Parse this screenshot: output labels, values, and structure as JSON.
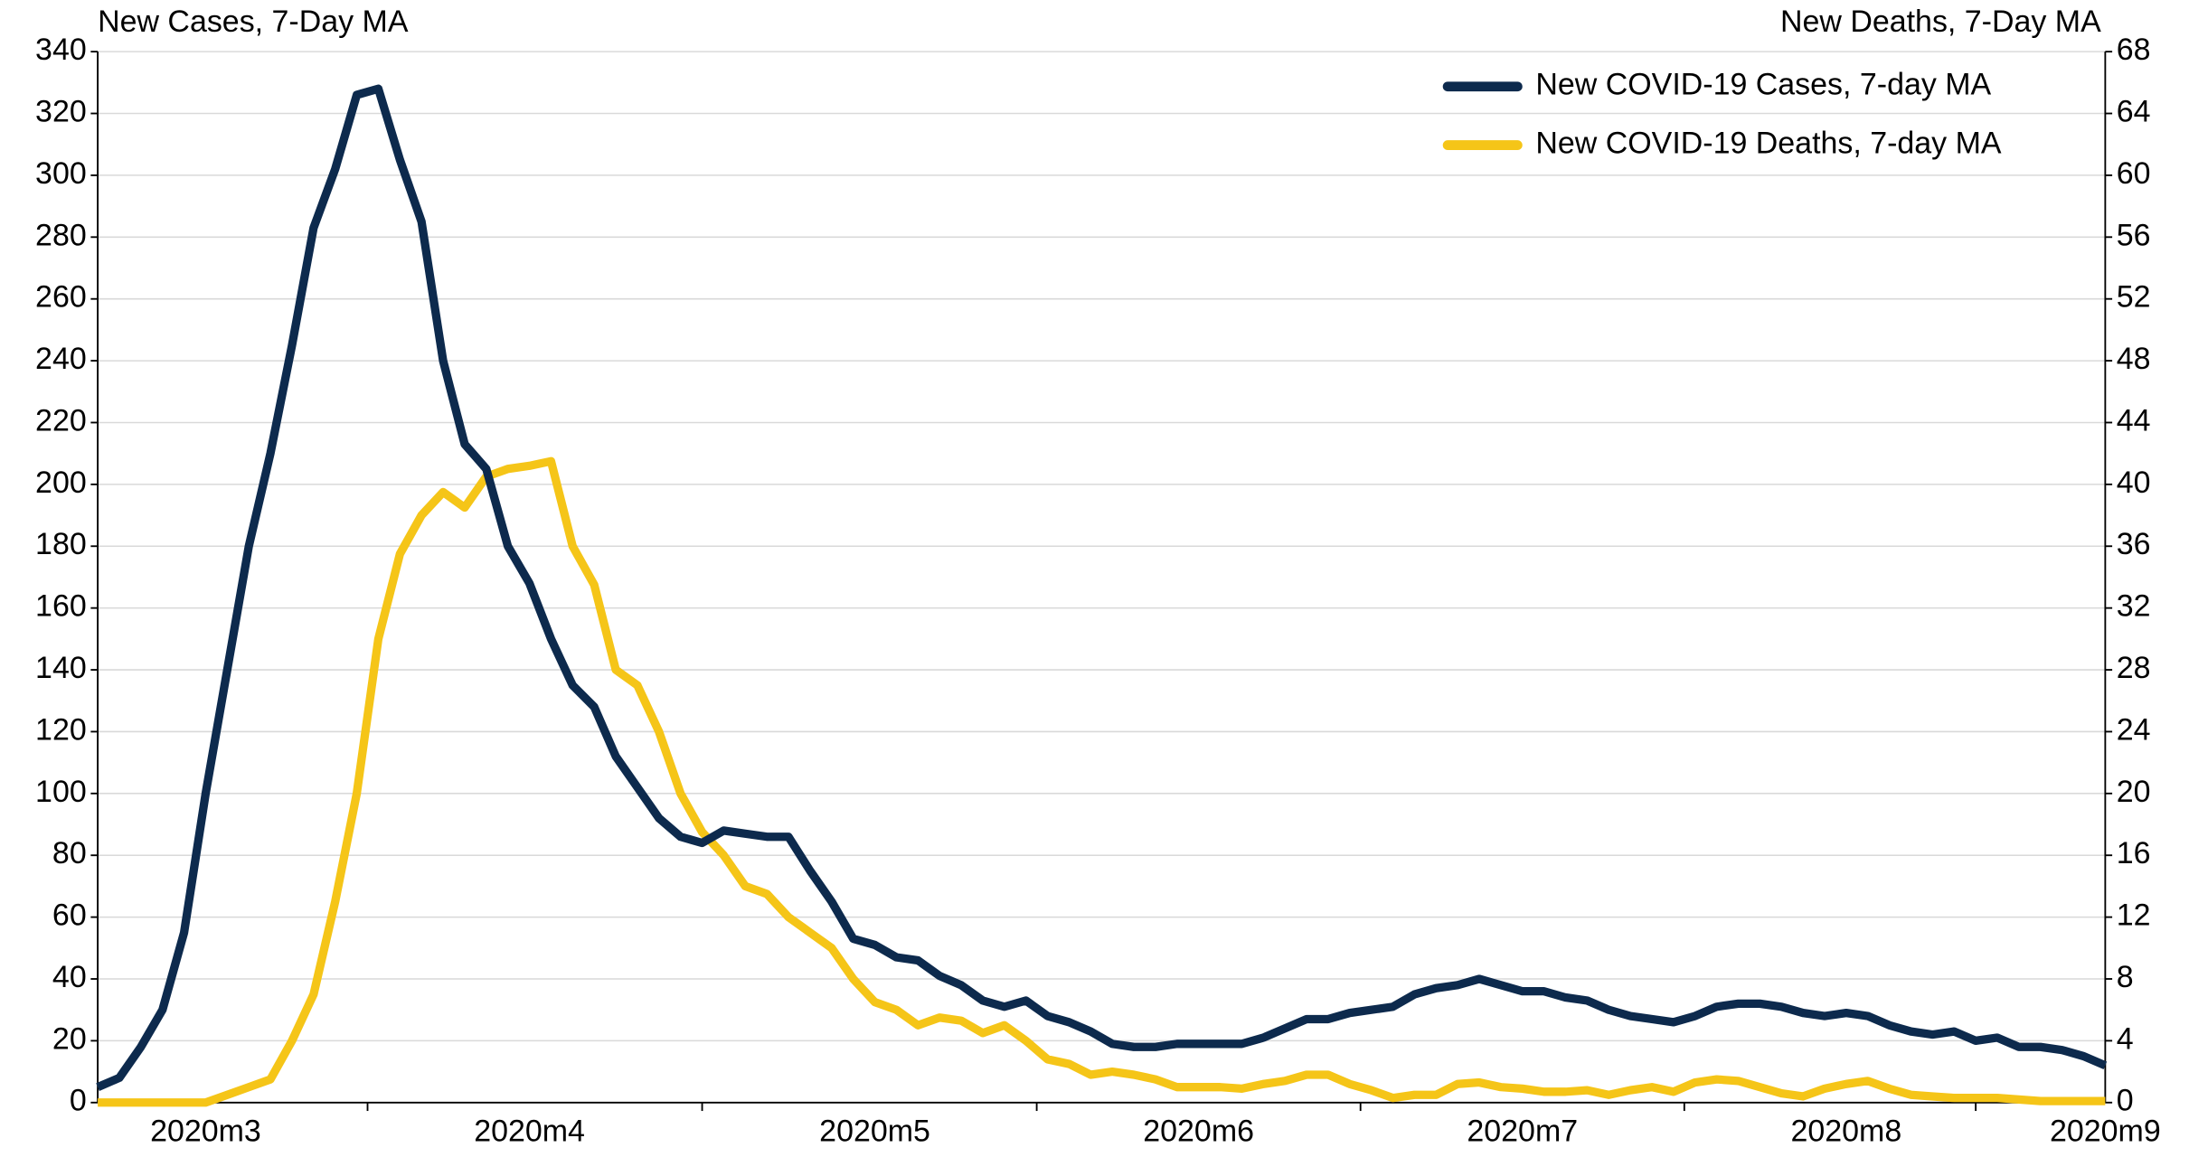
{
  "chart_data": {
    "type": "line",
    "y_label": "New Cases, 7-Day MA",
    "y2_label": "New Deaths, 7-Day MA",
    "categories": [
      null,
      null,
      null,
      null,
      null,
      "2020m3",
      null,
      null,
      null,
      null,
      null,
      null,
      null,
      null,
      null,
      null,
      null,
      null,
      null,
      null,
      "2020m4",
      null,
      null,
      null,
      null,
      null,
      null,
      null,
      null,
      null,
      null,
      null,
      null,
      null,
      null,
      null,
      "2020m5",
      null,
      null,
      null,
      null,
      null,
      null,
      null,
      null,
      null,
      null,
      null,
      null,
      null,
      null,
      "2020m6",
      null,
      null,
      null,
      null,
      null,
      null,
      null,
      null,
      null,
      null,
      null,
      null,
      null,
      null,
      "2020m7",
      null,
      null,
      null,
      null,
      null,
      null,
      null,
      null,
      null,
      null,
      null,
      null,
      null,
      null,
      "2020m8",
      null,
      null,
      null,
      null,
      null,
      null,
      null,
      null,
      null,
      null,
      null,
      "2020m9"
    ],
    "series": [
      {
        "name": "New COVID-19 Cases, 7-day MA",
        "color": "#0d2a4d",
        "values": [
          5,
          8,
          18,
          30,
          55,
          100,
          140,
          180,
          210,
          245,
          283,
          302,
          326,
          328,
          305,
          285,
          240,
          213,
          205,
          180,
          168,
          150,
          135,
          128,
          112,
          102,
          92,
          86,
          84,
          88,
          87,
          86,
          86,
          75,
          65,
          53,
          51,
          47,
          46,
          41,
          38,
          33,
          31,
          33,
          28,
          26,
          23,
          19,
          18,
          18,
          19,
          19,
          19,
          19,
          21,
          24,
          27,
          27,
          29,
          30,
          31,
          35,
          37,
          38,
          40,
          38,
          36,
          36,
          34,
          33,
          30,
          28,
          27,
          26,
          28,
          31,
          32,
          32,
          31,
          29,
          28,
          29,
          28,
          25,
          23,
          22,
          23,
          20,
          21,
          18,
          18,
          17,
          15,
          12
        ]
      },
      {
        "name": "New COVID-19 Deaths, 7-day MA",
        "color": "#f5c518",
        "axis": "y2",
        "values": [
          0,
          0,
          0,
          0,
          0,
          0,
          0.5,
          1,
          1.5,
          4,
          7,
          13,
          20,
          30,
          35.5,
          38,
          39.5,
          38.5,
          40.5,
          41,
          41.2,
          41.5,
          36,
          33.5,
          28,
          27,
          24,
          20,
          17.5,
          16,
          14,
          13.5,
          12,
          11,
          10,
          8,
          6.5,
          6,
          5,
          5.5,
          5.3,
          4.5,
          5,
          4,
          2.8,
          2.5,
          1.8,
          2,
          1.8,
          1.5,
          1,
          1,
          1,
          0.9,
          1.2,
          1.4,
          1.8,
          1.8,
          1.2,
          0.8,
          0.3,
          0.5,
          0.5,
          1.2,
          1.3,
          1,
          0.9,
          0.7,
          0.7,
          0.8,
          0.5,
          0.8,
          1,
          0.7,
          1.3,
          1.5,
          1.4,
          1,
          0.6,
          0.4,
          0.9,
          1.2,
          1.4,
          0.9,
          0.5,
          0.4,
          0.3,
          0.3,
          0.3,
          0.2,
          0.1,
          0.1,
          0.1,
          0.1
        ]
      }
    ],
    "ylim": [
      0,
      340
    ],
    "yticks": [
      0,
      20,
      40,
      60,
      80,
      100,
      120,
      140,
      160,
      180,
      200,
      220,
      240,
      260,
      280,
      300,
      320,
      340
    ],
    "y2lim": [
      0,
      68
    ],
    "y2ticks": [
      0,
      4,
      8,
      12,
      16,
      20,
      24,
      28,
      32,
      36,
      40,
      44,
      48,
      52,
      56,
      60,
      64,
      68
    ],
    "grid": true,
    "legend": "top-right"
  }
}
